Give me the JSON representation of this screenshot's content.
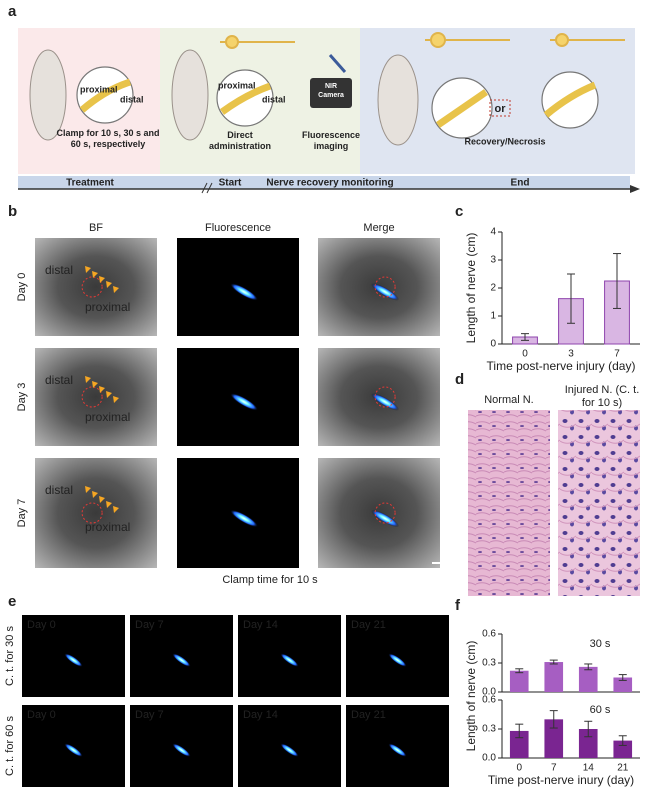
{
  "panel_labels": [
    "a",
    "b",
    "c",
    "d",
    "e",
    "f"
  ],
  "panel_a": {
    "mouse1_labels": [
      "proximal",
      "distal"
    ],
    "clamp_text": "Clamp for 10 s, 30 s and 60 s, respectively",
    "mouse2_labels": [
      "proximal",
      "distal"
    ],
    "direct": "Direct administration",
    "camera": "NIR Camera",
    "imaging": "Fluorescence imaging",
    "or": "or",
    "outcome": "Recovery/Necrosis",
    "timeline": [
      "Treatment",
      "Start",
      "Nerve recovery monitoring",
      "End"
    ]
  },
  "panel_b": {
    "columns": [
      "BF",
      "Fluorescence",
      "Merge"
    ],
    "rows": [
      "Day 0",
      "Day 3",
      "Day 7"
    ],
    "image_labels": [
      "distal",
      "proximal"
    ],
    "caption": "Clamp time for 10 s"
  },
  "panel_d": {
    "columns": [
      "Normal N.",
      "Injured N. (C. t. for 10 s)"
    ]
  },
  "panel_e": {
    "rows": [
      "C. t. for 30 s",
      "C. t. for 60 s"
    ],
    "days": [
      "Day 0",
      "Day 7",
      "Day 14",
      "Day 21"
    ]
  },
  "chart_data": [
    {
      "type": "bar",
      "categories": [
        "0",
        "3",
        "7"
      ],
      "values": [
        0.25,
        1.62,
        2.25
      ],
      "errors": [
        0.12,
        0.88,
        0.98
      ],
      "color": "#d9b6e3",
      "edge_color": "#8e44ad",
      "ylim": [
        0,
        4
      ],
      "yticks": [
        0,
        1,
        2,
        3,
        4
      ],
      "ylabel": "Length of nerve (cm)",
      "xlabel": "Time post-nerve injury (day)"
    },
    {
      "type": "bar",
      "categories": [
        "0",
        "7",
        "14",
        "21"
      ],
      "series": [
        {
          "name": "30 s",
          "color": "#a65ec2",
          "values": [
            0.22,
            0.31,
            0.26,
            0.15
          ],
          "errors": [
            0.02,
            0.02,
            0.03,
            0.03
          ]
        },
        {
          "name": "60 s",
          "color": "#7a2591",
          "values": [
            0.28,
            0.4,
            0.3,
            0.18
          ],
          "errors": [
            0.07,
            0.09,
            0.08,
            0.05
          ]
        }
      ],
      "ylim": [
        0,
        0.6
      ],
      "yticks": [
        {
          "value": 0,
          "label": "0.0"
        },
        0.3,
        0.6
      ],
      "ylabel": "Length of nerve (cm)",
      "xlabel": "Time post-nerve inury (day)"
    }
  ]
}
